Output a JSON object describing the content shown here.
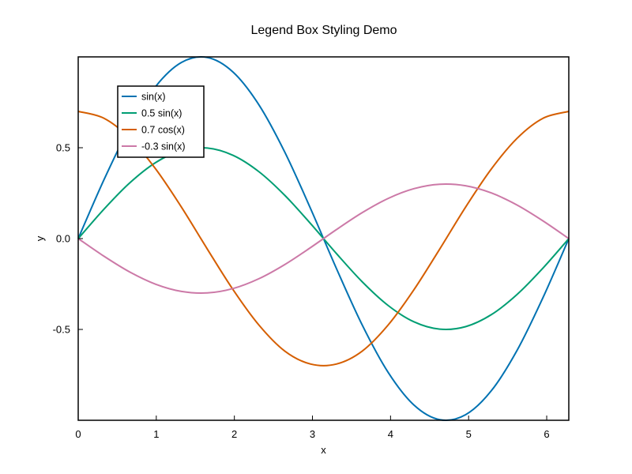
{
  "chart_data": {
    "type": "line",
    "title": "Legend Box Styling Demo",
    "xlabel": "x",
    "ylabel": "y",
    "xlim": [
      0,
      6.283
    ],
    "ylim": [
      -1.0,
      1.0
    ],
    "xticks": [
      0,
      1,
      2,
      3,
      4,
      5,
      6
    ],
    "xtick_labels": [
      "0",
      "1",
      "2",
      "3",
      "4",
      "5",
      "6"
    ],
    "yticks": [
      -0.5,
      0.0,
      0.5
    ],
    "ytick_labels": [
      "-0.5",
      "0.0",
      "0.5"
    ],
    "grid": false,
    "legend_position": "top-left",
    "x": [
      0,
      0.3307,
      0.6614,
      0.9921,
      1.3228,
      1.6535,
      1.9842,
      2.3149,
      2.6456,
      2.9762,
      3.3069,
      3.6376,
      3.9683,
      4.299,
      4.6297,
      4.9604,
      5.2911,
      5.6218,
      5.9525,
      6.2832
    ],
    "series": [
      {
        "name": "sin(x)",
        "color": "#0072B2",
        "values": [
          0.0,
          0.3247,
          0.6142,
          0.8372,
          0.9694,
          0.9966,
          0.9158,
          0.7357,
          0.4759,
          0.1646,
          -0.1646,
          -0.4759,
          -0.7357,
          -0.9158,
          -0.9966,
          -0.9694,
          -0.8372,
          -0.6142,
          -0.3247,
          0.0
        ]
      },
      {
        "name": "0.5 sin(x)",
        "color": "#009E73",
        "values": [
          0.0,
          0.1624,
          0.3071,
          0.4186,
          0.4847,
          0.4983,
          0.4579,
          0.3679,
          0.238,
          0.0823,
          -0.0823,
          -0.238,
          -0.3679,
          -0.4579,
          -0.4983,
          -0.4847,
          -0.4186,
          -0.3071,
          -0.1624,
          0.0
        ]
      },
      {
        "name": "0.7 cos(x)",
        "color": "#D55E00",
        "values": [
          0.7,
          0.6621,
          0.5525,
          0.383,
          0.1727,
          -0.0578,
          -0.2819,
          -0.4762,
          -0.6193,
          -0.6905,
          -0.6905,
          -0.6193,
          -0.4762,
          -0.2819,
          -0.0578,
          0.1727,
          0.383,
          0.5525,
          0.6621,
          0.7
        ]
      },
      {
        "name": "-0.3 sin(x)",
        "color": "#CC79A7",
        "values": [
          0.0,
          -0.0974,
          -0.1843,
          -0.2512,
          -0.2908,
          -0.299,
          -0.2747,
          -0.2207,
          -0.1428,
          -0.0494,
          0.0494,
          0.1428,
          0.2207,
          0.2747,
          0.299,
          0.2908,
          0.2512,
          0.1843,
          0.0974,
          0.0
        ]
      }
    ]
  }
}
